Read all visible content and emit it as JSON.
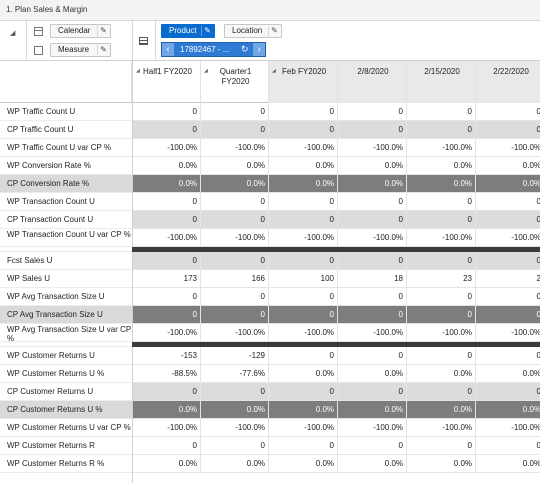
{
  "window": {
    "title": "1. Plan Sales & Margin"
  },
  "pivot": {
    "tiles": {
      "calendar": "Calendar",
      "measure": "Measure",
      "product": "Product",
      "location": "Location"
    },
    "selector": {
      "value": "17892467 - ..."
    }
  },
  "columns": [
    {
      "label": "Half1 FY2020",
      "shaded": false
    },
    {
      "label": "Quarter1 FY2020",
      "shaded": false
    },
    {
      "label": "Feb FY2020",
      "shaded": true
    },
    {
      "label": "2/8/2020",
      "shaded": true
    },
    {
      "label": "2/15/2020",
      "shaded": true
    },
    {
      "label": "2/22/2020",
      "shaded": true
    }
  ],
  "rows": [
    {
      "label": "WP Traffic Count U",
      "style": "edit",
      "values": [
        "0",
        "0",
        "0",
        "0",
        "0",
        "0"
      ]
    },
    {
      "label": "CP Traffic Count U",
      "style": "ro",
      "values": [
        "0",
        "0",
        "0",
        "0",
        "0",
        "0"
      ]
    },
    {
      "label": "WP Traffic Count U var CP %",
      "style": "edit",
      "values": [
        "-100.0%",
        "-100.0%",
        "-100.0%",
        "-100.0%",
        "-100.0%",
        "-100.0%"
      ]
    },
    {
      "label": "WP Conversion Rate %",
      "style": "edit",
      "values": [
        "0.0%",
        "0.0%",
        "0.0%",
        "0.0%",
        "0.0%",
        "0.0%"
      ]
    },
    {
      "label": "CP Conversion Rate %",
      "style": "dk",
      "values": [
        "0.0%",
        "0.0%",
        "0.0%",
        "0.0%",
        "0.0%",
        "0.0%"
      ]
    },
    {
      "label": "WP Transaction Count U",
      "style": "edit",
      "values": [
        "0",
        "0",
        "0",
        "0",
        "0",
        "0"
      ]
    },
    {
      "label": "CP Transaction Count U",
      "style": "ro",
      "values": [
        "0",
        "0",
        "0",
        "0",
        "0",
        "0"
      ]
    },
    {
      "label": "WP Transaction Count U var CP %",
      "style": "edit",
      "values": [
        "-100.0%",
        "-100.0%",
        "-100.0%",
        "-100.0%",
        "-100.0%",
        "-100.0%"
      ]
    },
    {
      "label": "",
      "style": "sep",
      "values": []
    },
    {
      "label": "Fcst Sales U",
      "style": "ro",
      "values": [
        "0",
        "0",
        "0",
        "0",
        "0",
        "0"
      ]
    },
    {
      "label": "WP Sales U",
      "style": "edit",
      "values": [
        "173",
        "166",
        "100",
        "18",
        "23",
        "2"
      ]
    },
    {
      "label": "WP Avg Transaction Size U",
      "style": "edit",
      "values": [
        "0",
        "0",
        "0",
        "0",
        "0",
        "0"
      ]
    },
    {
      "label": "CP Avg Transaction Size U",
      "style": "dk",
      "values": [
        "0",
        "0",
        "0",
        "0",
        "0",
        "0"
      ]
    },
    {
      "label": "WP Avg Transaction Size U var CP %",
      "style": "edit",
      "values": [
        "-100.0%",
        "-100.0%",
        "-100.0%",
        "-100.0%",
        "-100.0%",
        "-100.0%"
      ]
    },
    {
      "label": "",
      "style": "sep",
      "values": []
    },
    {
      "label": "WP Customer Returns U",
      "style": "edit",
      "values": [
        "-153",
        "-129",
        "0",
        "0",
        "0",
        "0"
      ]
    },
    {
      "label": "WP Customer Returns U %",
      "style": "edit",
      "values": [
        "-88.5%",
        "-77.6%",
        "0.0%",
        "0.0%",
        "0.0%",
        "0.0%"
      ]
    },
    {
      "label": "CP Customer Returns U",
      "style": "ro",
      "values": [
        "0",
        "0",
        "0",
        "0",
        "0",
        "0"
      ]
    },
    {
      "label": "CP Customer Returns U %",
      "style": "dk",
      "values": [
        "0.0%",
        "0.0%",
        "0.0%",
        "0.0%",
        "0.0%",
        "0.0%"
      ]
    },
    {
      "label": "WP Customer Returns U var CP %",
      "style": "edit",
      "values": [
        "-100.0%",
        "-100.0%",
        "-100.0%",
        "-100.0%",
        "-100.0%",
        "-100.0%"
      ]
    },
    {
      "label": "WP Customer Returns R",
      "style": "edit",
      "values": [
        "0",
        "0",
        "0",
        "0",
        "0",
        "0"
      ]
    },
    {
      "label": "WP Customer Returns R %",
      "style": "edit",
      "values": [
        "0.0%",
        "0.0%",
        "0.0%",
        "0.0%",
        "0.0%",
        "0.0%"
      ]
    }
  ]
}
